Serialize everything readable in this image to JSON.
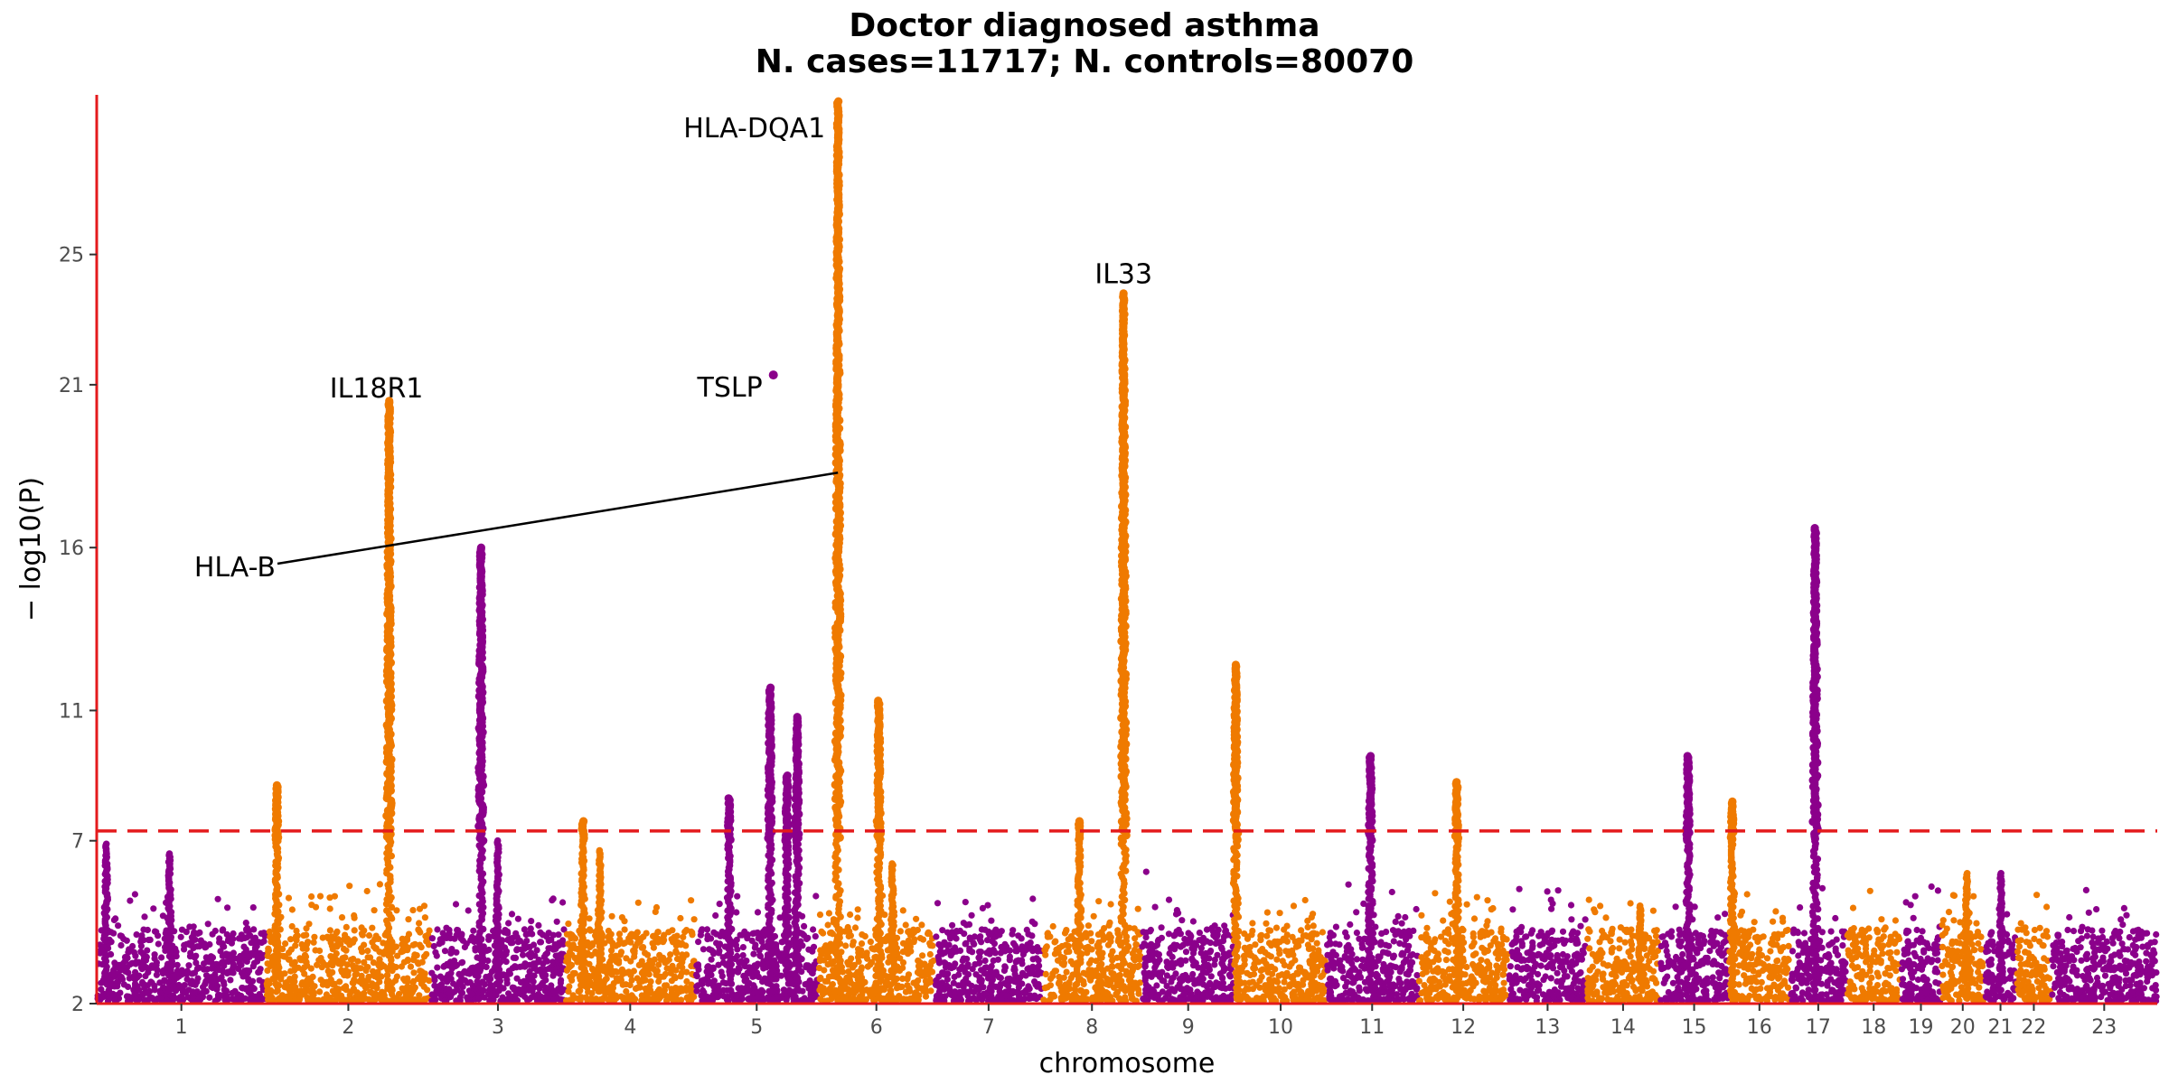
{
  "chart_data": {
    "type": "scatter",
    "subtype": "manhattan",
    "title": "Doctor diagnosed asthma",
    "subtitle": "N. cases=11717; N. controls=80070",
    "xlabel": "chromosome",
    "ylabel": "− log10(P)",
    "ylim": [
      2,
      29.9
    ],
    "yticks": [
      2,
      7,
      11,
      16,
      21,
      25
    ],
    "significance_threshold": 7.3,
    "threshold_color": "#e41a1c",
    "axis_color": "#e41a1c",
    "colors": {
      "odd_chromosomes": "#8b008b",
      "even_chromosomes": "#ef7a00"
    },
    "legend": "none",
    "grid": false,
    "chromosomes": [
      {
        "label": "1",
        "start": 0,
        "end": 2.49
      },
      {
        "label": "2",
        "start": 2.49,
        "end": 4.91
      },
      {
        "label": "3",
        "start": 4.91,
        "end": 6.89
      },
      {
        "label": "4",
        "start": 6.89,
        "end": 8.8
      },
      {
        "label": "5",
        "start": 8.8,
        "end": 10.61
      },
      {
        "label": "6",
        "start": 10.61,
        "end": 12.32
      },
      {
        "label": "7",
        "start": 12.32,
        "end": 13.91
      },
      {
        "label": "8",
        "start": 13.91,
        "end": 15.36
      },
      {
        "label": "9",
        "start": 15.36,
        "end": 16.74
      },
      {
        "label": "10",
        "start": 16.74,
        "end": 18.08
      },
      {
        "label": "11",
        "start": 18.08,
        "end": 19.43
      },
      {
        "label": "12",
        "start": 19.43,
        "end": 20.76
      },
      {
        "label": "13",
        "start": 20.76,
        "end": 21.91
      },
      {
        "label": "14",
        "start": 21.91,
        "end": 22.98
      },
      {
        "label": "15",
        "start": 22.98,
        "end": 24.0
      },
      {
        "label": "16",
        "start": 24.0,
        "end": 24.9
      },
      {
        "label": "17",
        "start": 24.9,
        "end": 25.73
      },
      {
        "label": "18",
        "start": 25.73,
        "end": 26.53
      },
      {
        "label": "19",
        "start": 26.53,
        "end": 27.12
      },
      {
        "label": "20",
        "start": 27.12,
        "end": 27.76
      },
      {
        "label": "21",
        "start": 27.76,
        "end": 28.23
      },
      {
        "label": "22",
        "start": 28.23,
        "end": 28.74
      },
      {
        "label": "23",
        "start": 28.74,
        "end": 30.3
      }
    ],
    "peaks": [
      {
        "x": 0.14,
        "y": 6.9
      },
      {
        "x": 1.07,
        "y": 6.6
      },
      {
        "x": 2.65,
        "y": 8.7
      },
      {
        "x": 4.3,
        "y": 20.5
      },
      {
        "x": 5.65,
        "y": 16.0
      },
      {
        "x": 5.9,
        "y": 7.0
      },
      {
        "x": 7.15,
        "y": 7.6
      },
      {
        "x": 7.4,
        "y": 6.7
      },
      {
        "x": 9.3,
        "y": 8.3
      },
      {
        "x": 9.9,
        "y": 11.7
      },
      {
        "x": 10.15,
        "y": 9.0
      },
      {
        "x": 10.3,
        "y": 10.8
      },
      {
        "x": 10.9,
        "y": 29.7
      },
      {
        "x": 11.5,
        "y": 11.3
      },
      {
        "x": 11.7,
        "y": 6.3
      },
      {
        "x": 14.45,
        "y": 7.6
      },
      {
        "x": 15.1,
        "y": 23.8
      },
      {
        "x": 16.75,
        "y": 12.4
      },
      {
        "x": 18.73,
        "y": 9.6
      },
      {
        "x": 20.0,
        "y": 8.8
      },
      {
        "x": 22.7,
        "y": 5.0
      },
      {
        "x": 23.4,
        "y": 9.6
      },
      {
        "x": 24.05,
        "y": 8.2
      },
      {
        "x": 25.27,
        "y": 16.6
      },
      {
        "x": 27.5,
        "y": 6.0
      },
      {
        "x": 28.0,
        "y": 6.0
      }
    ],
    "isolated_points": [
      {
        "x": 9.95,
        "y": 21.3
      }
    ],
    "annotations": [
      {
        "text": "HLA-DQA1",
        "x": 10.9,
        "y": 29.6
      },
      {
        "text": "IL33",
        "x": 15.1,
        "y": 24.4
      },
      {
        "text": "IL18R1",
        "x": 4.3,
        "y": 21.0
      },
      {
        "text": "TSLP",
        "x": 9.95,
        "y": 21.3
      },
      {
        "text": "HLA-B",
        "x": 10.9,
        "y": 18.3
      }
    ]
  }
}
